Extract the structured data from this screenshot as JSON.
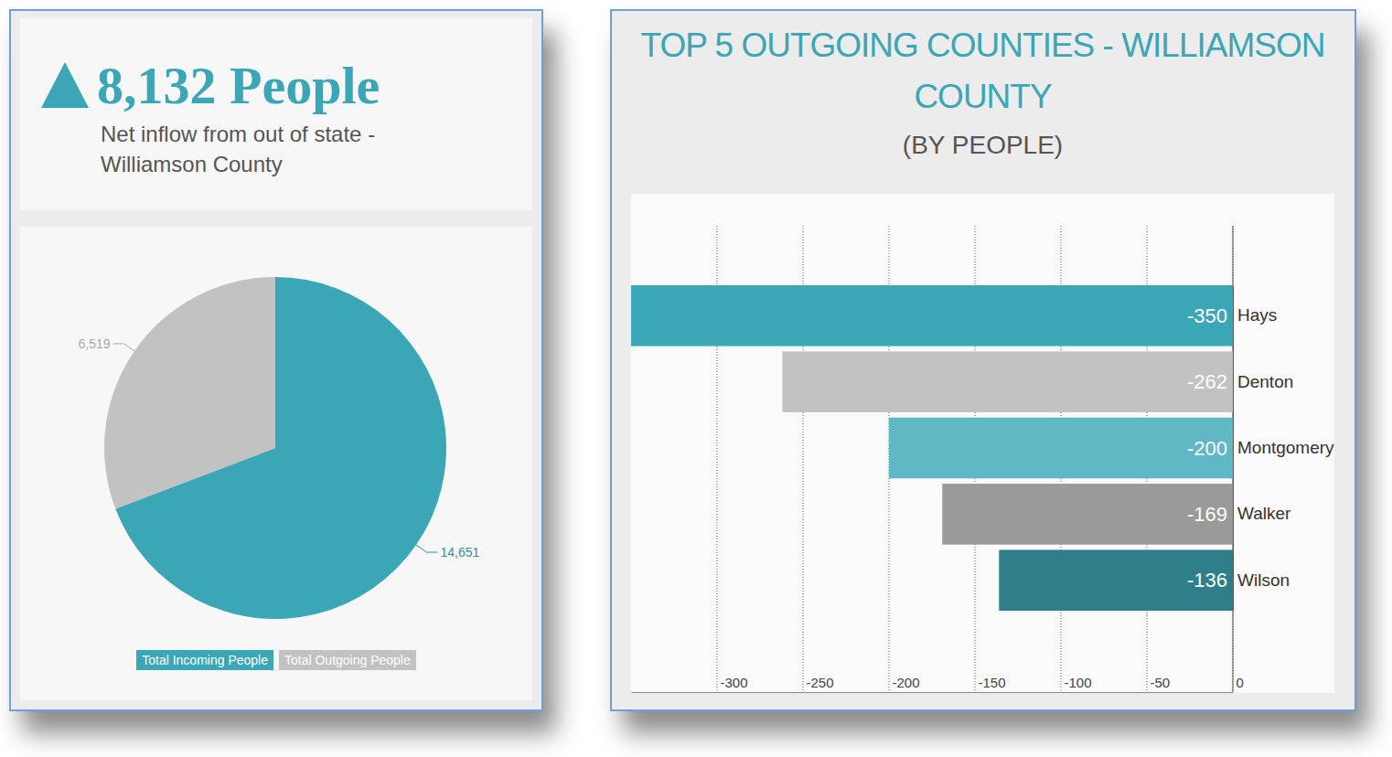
{
  "chart_data": [
    {
      "type": "pie",
      "title": "8,132 People",
      "subtitle": "Net inflow from out of state - Williamson County",
      "categories": [
        "Total Incoming People",
        "Total Outgoing People"
      ],
      "values": [
        14651,
        6519
      ],
      "value_labels": [
        "14,651",
        "6,519"
      ],
      "colors": [
        "#3ba6b6",
        "#c2c2c2"
      ],
      "data_labels": true,
      "legend": "bottom"
    },
    {
      "type": "bar",
      "title": "TOP 5 OUTGOING COUNTIES - WILLIAMSON COUNTY",
      "subtitle": "(BY PEOPLE)",
      "orientation": "horizontal",
      "categories": [
        "Hays",
        "Denton",
        "Montgomery",
        "Walker",
        "Wilson"
      ],
      "values": [
        -350,
        -262,
        -200,
        -169,
        -136
      ],
      "colors": [
        "#3ba6b6",
        "#c2c2c2",
        "#5fb8c3",
        "#9a9a9a",
        "#2e7f89"
      ],
      "xlim": [
        -350,
        0
      ],
      "xticks": [
        -300,
        -250,
        -200,
        -150,
        -100,
        -50,
        0
      ],
      "grid": true,
      "data_labels": true
    }
  ]
}
